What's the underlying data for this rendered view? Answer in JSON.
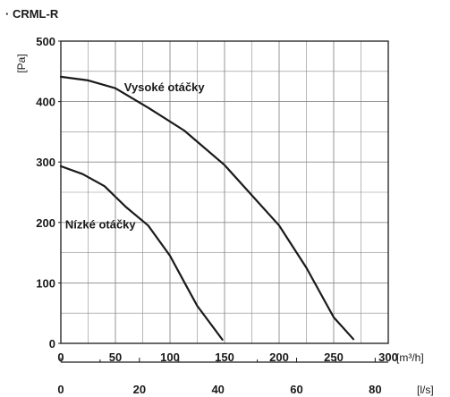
{
  "chart_data": {
    "type": "line",
    "title": "· CRML-R",
    "ylabel": "[Pa]",
    "xlabel": "[m³/h]",
    "x2label": "[l/s]",
    "xlim": [
      0,
      300
    ],
    "ylim": [
      0,
      500
    ],
    "x_ticks": [
      0,
      50,
      100,
      150,
      200,
      250,
      300
    ],
    "y_ticks": [
      0,
      100,
      200,
      300,
      400,
      500
    ],
    "x2_ticks": [
      0,
      20,
      40,
      60,
      80
    ],
    "grid": true,
    "series": [
      {
        "name": "Vysoké otáčky",
        "x": [
          0,
          25,
          50,
          80,
          113,
          150,
          200,
          225,
          250,
          268
        ],
        "y": [
          441,
          435,
          422,
          390,
          352,
          295,
          195,
          125,
          43,
          7
        ]
      },
      {
        "name": "Nízké otáčky",
        "x": [
          0,
          20,
          40,
          60,
          80,
          100,
          115,
          125,
          148
        ],
        "y": [
          293,
          280,
          260,
          225,
          195,
          145,
          95,
          62,
          6
        ]
      }
    ],
    "colors": {
      "line": "#1a1a1a",
      "grid": "#8a8a8a"
    }
  }
}
